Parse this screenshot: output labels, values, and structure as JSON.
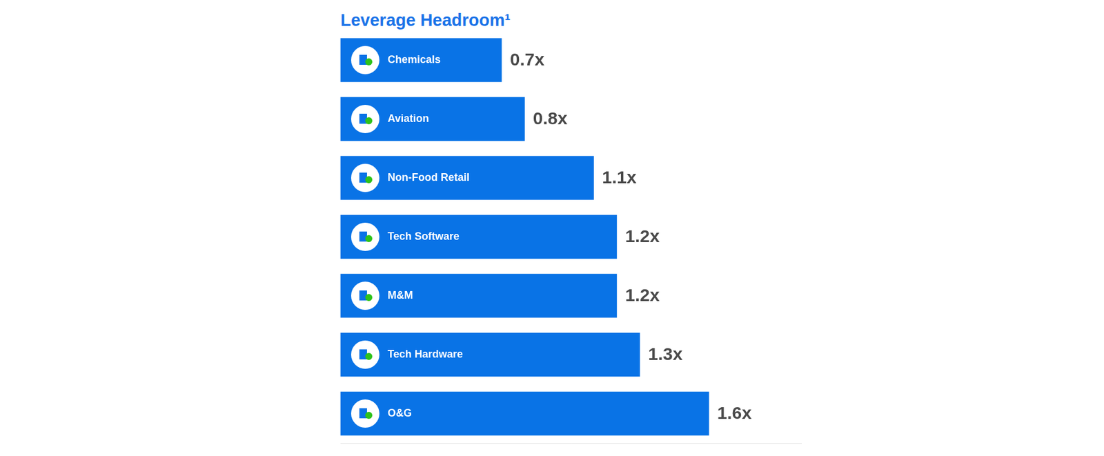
{
  "chart_data": {
    "type": "bar",
    "orientation": "horizontal",
    "title": "Leverage Headroom¹",
    "categories": [
      "Chemicals",
      "Aviation",
      "Non-Food Retail",
      "Tech Software",
      "M&M",
      "Tech Hardware",
      "O&G"
    ],
    "values": [
      0.7,
      0.8,
      1.1,
      1.2,
      1.2,
      1.3,
      1.6
    ],
    "value_labels": [
      "0.7x",
      "0.8x",
      "1.1x",
      "1.2x",
      "1.2x",
      "1.3x",
      "1.6x"
    ],
    "color": "#0973e6",
    "xlim": [
      0,
      2
    ],
    "grid": false,
    "data_labels": true,
    "tick_labels": false
  }
}
